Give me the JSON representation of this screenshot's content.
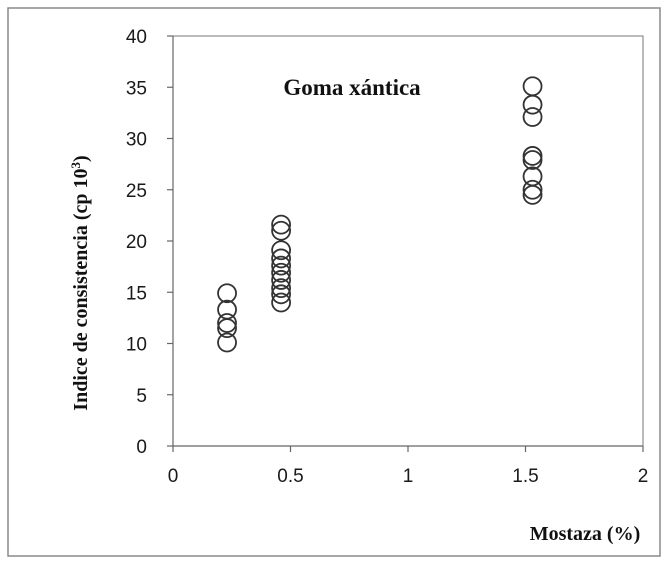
{
  "chart_data": {
    "type": "scatter",
    "title": "Goma xántica",
    "xlabel": "Mostaza (%)",
    "ylabel": "Indice de consistencia (cp 10",
    "ylabel_sup": "3",
    "ylabel_close": ")",
    "xlim": [
      0,
      2
    ],
    "ylim": [
      0,
      40
    ],
    "xticks": [
      0,
      0.5,
      1,
      1.5,
      2
    ],
    "xtick_labels": [
      "0",
      "0.5",
      "1",
      "1.5",
      "2"
    ],
    "yticks": [
      0,
      5,
      10,
      15,
      20,
      25,
      30,
      35,
      40
    ],
    "ytick_labels": [
      "0",
      "5",
      "10",
      "15",
      "20",
      "25",
      "30",
      "35",
      "40"
    ],
    "grid": false,
    "legend": "none",
    "marker": "open-circle",
    "series": [
      {
        "x": [
          0.23,
          0.23,
          0.23,
          0.23,
          0.23,
          0.46,
          0.46,
          0.46,
          0.46,
          0.46,
          0.46,
          0.46,
          0.46,
          0.46,
          0.46,
          1.53,
          1.53,
          1.53,
          1.53,
          1.53,
          1.53,
          1.53,
          1.53
        ],
        "y": [
          10.1,
          11.5,
          12.0,
          13.3,
          14.9,
          14.0,
          14.8,
          15.4,
          16.2,
          16.9,
          17.6,
          18.3,
          19.1,
          21.0,
          21.6,
          24.5,
          25.0,
          26.3,
          27.9,
          28.3,
          32.1,
          33.3,
          35.1
        ]
      }
    ],
    "colors": {
      "marker_stroke": "#333333",
      "axis": "#666666",
      "text": "#1a1a1a",
      "frame": "#8a8a8a"
    }
  }
}
